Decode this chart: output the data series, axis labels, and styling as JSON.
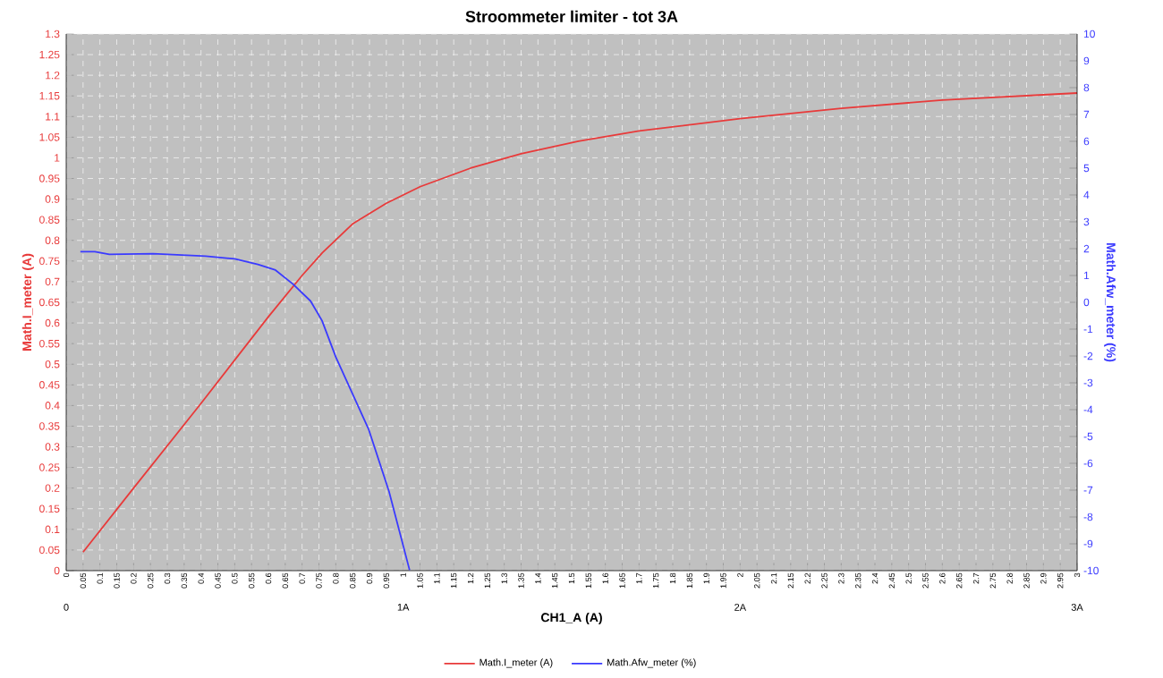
{
  "chart_data": {
    "type": "line",
    "title": "Stroommeter limiter - tot 3A",
    "xlabel": "CH1_A (A)",
    "ylabel": "Math.I_meter (A)",
    "y2label": "Math.Afw_meter (%)",
    "series": [
      {
        "name": "Math.I_meter (A)",
        "color": "#e83a3a",
        "x": [
          0.05,
          0.2,
          0.4,
          0.6,
          0.7,
          0.76,
          0.85,
          0.95,
          1.05,
          1.2,
          1.35,
          1.52,
          1.7,
          2.0,
          2.3,
          2.6,
          3.0
        ],
        "values": [
          0.045,
          0.2,
          0.405,
          0.615,
          0.715,
          0.77,
          0.84,
          0.89,
          0.93,
          0.975,
          1.01,
          1.04,
          1.065,
          1.095,
          1.12,
          1.14,
          1.157
        ]
      },
      {
        "name": "Math.Afw_meter (%)",
        "color": "#3a3aff",
        "axis": "y2",
        "x": [
          0.042,
          0.085,
          0.128,
          0.258,
          0.414,
          0.5,
          0.569,
          0.621,
          0.673,
          0.725,
          0.759,
          0.8,
          0.898,
          0.958,
          1.019
        ],
        "values": [
          1.89,
          1.89,
          1.79,
          1.81,
          1.72,
          1.62,
          1.41,
          1.2,
          0.68,
          0.05,
          -0.68,
          -2.04,
          -4.75,
          -7.05,
          -9.98
        ]
      }
    ],
    "xlim": [
      0,
      3
    ],
    "ylim": [
      0,
      1.3
    ],
    "y2lim": [
      -10,
      10
    ],
    "xticks": [
      0,
      0.05,
      0.1,
      0.15,
      0.2,
      0.25,
      0.3,
      0.35,
      0.4,
      0.45,
      0.5,
      0.55,
      0.6,
      0.65,
      0.7,
      0.75,
      0.8,
      0.85,
      0.9,
      0.95,
      1,
      1.05,
      1.1,
      1.15,
      1.2,
      1.25,
      1.3,
      1.35,
      1.4,
      1.45,
      1.5,
      1.55,
      1.6,
      1.65,
      1.7,
      1.75,
      1.8,
      1.85,
      1.9,
      1.95,
      2,
      2.05,
      2.1,
      2.15,
      2.2,
      2.25,
      2.3,
      2.35,
      2.4,
      2.45,
      2.5,
      2.55,
      2.6,
      2.65,
      2.7,
      2.75,
      2.8,
      2.85,
      2.9,
      2.95,
      3
    ],
    "yticks": [
      0,
      0.05,
      0.1,
      0.15,
      0.2,
      0.25,
      0.3,
      0.35,
      0.4,
      0.45,
      0.5,
      0.55,
      0.6,
      0.65,
      0.7,
      0.75,
      0.8,
      0.85,
      0.9,
      0.95,
      1,
      1.05,
      1.1,
      1.15,
      1.2,
      1.25,
      1.3
    ],
    "y2ticks": [
      -10,
      -9,
      -8,
      -7,
      -6,
      -5,
      -4,
      -3,
      -2,
      -1,
      0,
      1,
      2,
      3,
      4,
      5,
      6,
      7,
      8,
      9,
      10
    ],
    "annotations": [
      "0",
      "1A",
      "2A",
      "3A"
    ],
    "grid": true,
    "legend": "bottom",
    "marker": "none",
    "line_style": "solid"
  }
}
